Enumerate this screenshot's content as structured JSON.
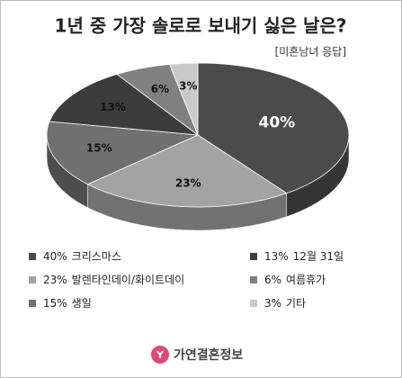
{
  "chart_data": {
    "type": "pie",
    "title": "1년 중 가장 솔로로 보내기 싫은 날은?",
    "subtitle": "[미혼남녀 응답]",
    "categories": [
      "크리스마스",
      "발렌타인데이/화이트데이",
      "생일",
      "12월 31일",
      "여름휴가",
      "기타"
    ],
    "values": [
      40,
      23,
      15,
      13,
      6,
      3
    ],
    "value_labels": [
      "40%",
      "23%",
      "15%",
      "13%",
      "6%",
      "3%"
    ],
    "colors": [
      "#4b4b4b",
      "#a3a3a3",
      "#707070",
      "#3c3c3c",
      "#808080",
      "#c9c9c9"
    ],
    "source": "가연결혼정보"
  }
}
